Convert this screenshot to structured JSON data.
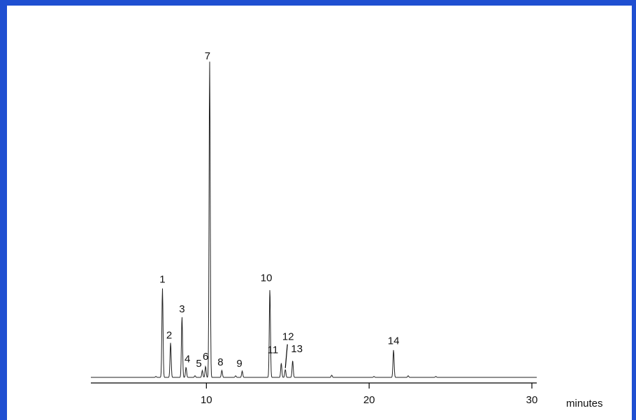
{
  "colors": {
    "border": "#1f4fd1",
    "trace": "#222222",
    "text": "#111111"
  },
  "chart_data": {
    "type": "line",
    "title": "",
    "xlabel": "minutes",
    "ylabel": "",
    "xlim": [
      2.9,
      30.3
    ],
    "ylim": [
      0,
      100
    ],
    "x_ticks": [
      10,
      20,
      30
    ],
    "x_tick_labels": [
      "10",
      "20",
      "30"
    ],
    "grid": false,
    "peaks": [
      {
        "label": "1",
        "rt": 7.3,
        "height": 28.2
      },
      {
        "label": "2",
        "rt": 7.8,
        "height": 11.0
      },
      {
        "label": "3",
        "rt": 8.5,
        "height": 19.2
      },
      {
        "label": "4",
        "rt": 8.75,
        "height": 3.2
      },
      {
        "label": "5",
        "rt": 9.75,
        "height": 2.2
      },
      {
        "label": "6",
        "rt": 9.95,
        "height": 3.5
      },
      {
        "label": "7",
        "rt": 10.2,
        "height": 100.0
      },
      {
        "label": "8",
        "rt": 10.95,
        "height": 2.2
      },
      {
        "label": "9",
        "rt": 12.2,
        "height": 2.0
      },
      {
        "label": "10",
        "rt": 13.9,
        "height": 28.0
      },
      {
        "label": "11",
        "rt": 14.6,
        "height": 4.5
      },
      {
        "label": "12",
        "rt": 14.85,
        "height": 2.5
      },
      {
        "label": "13",
        "rt": 15.3,
        "height": 5.3
      },
      {
        "label": "14",
        "rt": 21.5,
        "height": 8.7
      }
    ],
    "minor_peaks": [
      {
        "rt": 6.9,
        "height": 0.3
      },
      {
        "rt": 9.3,
        "height": 0.5
      },
      {
        "rt": 11.8,
        "height": 0.5
      },
      {
        "rt": 17.7,
        "height": 0.7
      },
      {
        "rt": 20.3,
        "height": 0.3
      },
      {
        "rt": 22.4,
        "height": 0.5
      },
      {
        "rt": 24.1,
        "height": 0.3
      }
    ]
  }
}
